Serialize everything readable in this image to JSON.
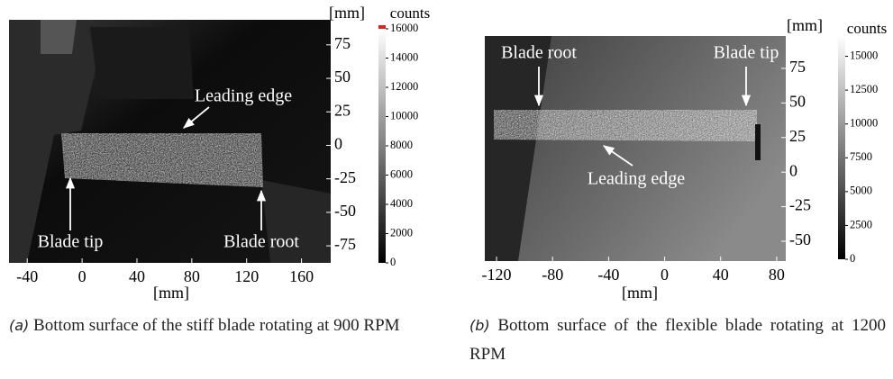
{
  "panels": [
    {
      "x_axis": {
        "label": "[mm]",
        "lim": [
          -53.3,
          181.3
        ],
        "ticks": [
          -40,
          0,
          40,
          80,
          120,
          160
        ]
      },
      "y_axis": {
        "unit": "[mm]",
        "lim": [
          -87.7,
          93.7
        ],
        "ticks": [
          75,
          50,
          25,
          0,
          -25,
          -50,
          -75
        ]
      },
      "colorbar": {
        "label": "counts",
        "lim": [
          0,
          16000
        ],
        "ticks": [
          16000,
          14000,
          12000,
          10000,
          8000,
          6000,
          4000,
          2000,
          0
        ]
      },
      "annotations": [
        {
          "text": "Leading edge"
        },
        {
          "text": "Blade tip"
        },
        {
          "text": "Blade root"
        }
      ],
      "caption": {
        "label": "(a)",
        "text": "Bottom surface of the stiff blade rotating at 900 RPM"
      }
    },
    {
      "x_axis": {
        "label": "[mm]",
        "lim": [
          -128.4,
          86.5
        ],
        "ticks": [
          -120,
          -80,
          -40,
          0,
          40,
          80
        ]
      },
      "y_axis": {
        "unit": "[mm]",
        "lim": [
          -64.3,
          98.4
        ],
        "ticks": [
          75,
          50,
          25,
          0,
          -25,
          -50
        ]
      },
      "colorbar": {
        "label": "counts",
        "lim": [
          0,
          16500
        ],
        "ticks": [
          15000,
          12500,
          10000,
          7500,
          5000,
          2500,
          0
        ]
      },
      "annotations": [
        {
          "text": "Blade root"
        },
        {
          "text": "Blade tip"
        },
        {
          "text": "Leading edge"
        }
      ],
      "caption": {
        "label": "(b)",
        "text": "Bottom surface of the flexible blade rotating at 1200 RPM"
      }
    }
  ]
}
